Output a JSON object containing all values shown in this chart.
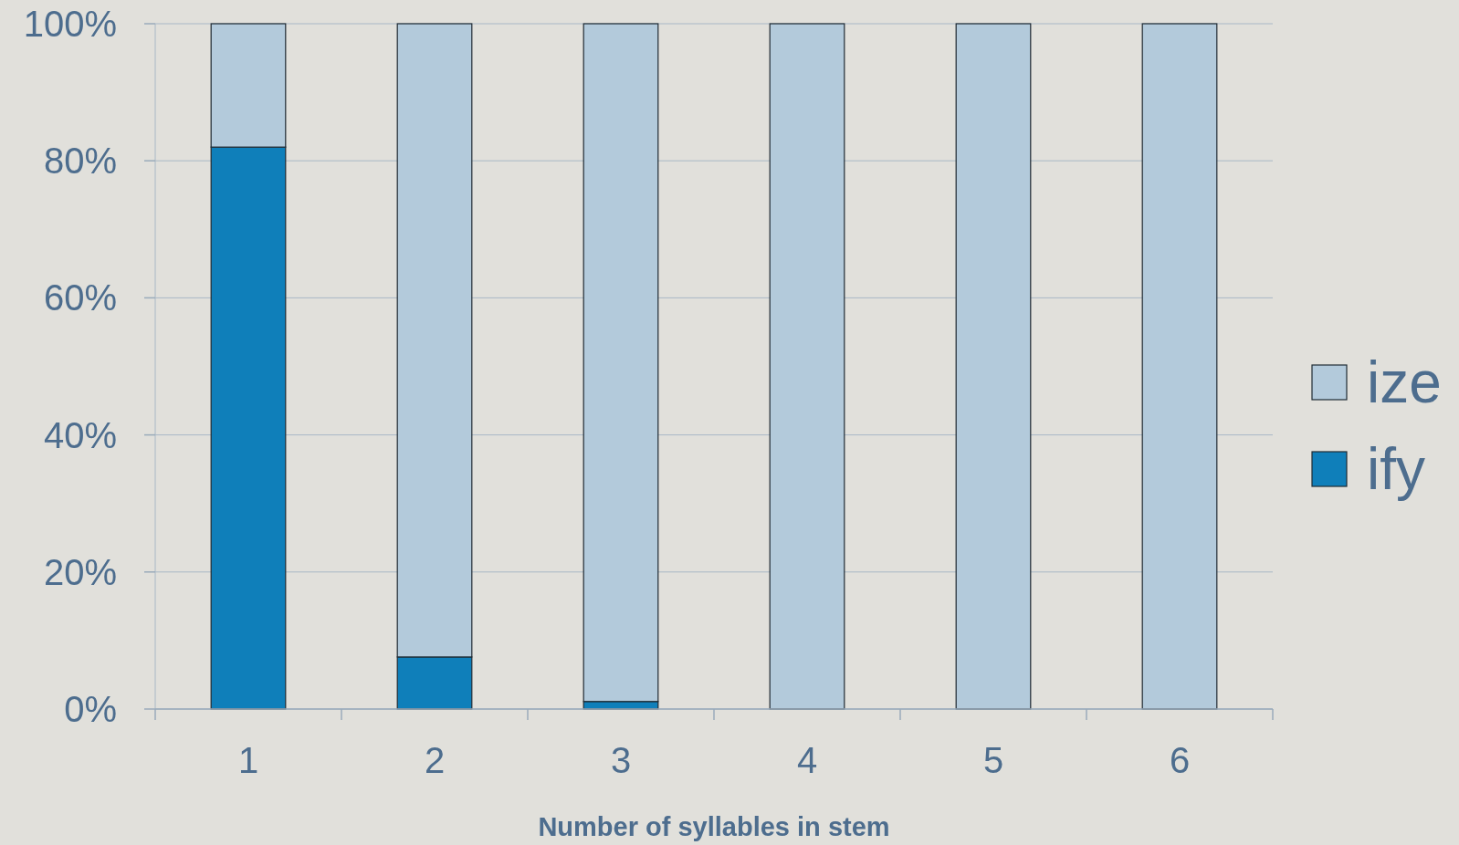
{
  "chart_data": {
    "type": "bar",
    "xlabel": "Number of syllables in stem",
    "categories": [
      "1",
      "2",
      "3",
      "4",
      "5",
      "6"
    ],
    "stacked": true,
    "series": [
      {
        "name": "ify",
        "color": "#0f7fba",
        "values": [
          82,
          7.6,
          1.1,
          0,
          0,
          0
        ]
      },
      {
        "name": "ize",
        "color": "#b3cadb",
        "values": [
          18,
          92.4,
          98.9,
          100,
          100,
          100
        ]
      }
    ],
    "ylim": [
      0,
      100
    ],
    "yticks": [
      {
        "value": 0,
        "label": "0%"
      },
      {
        "value": 20,
        "label": "20%"
      },
      {
        "value": 40,
        "label": "40%"
      },
      {
        "value": 60,
        "label": "60%"
      },
      {
        "value": 80,
        "label": "80%"
      },
      {
        "value": 100,
        "label": "100%"
      }
    ],
    "grid": "y",
    "legend": "right"
  }
}
